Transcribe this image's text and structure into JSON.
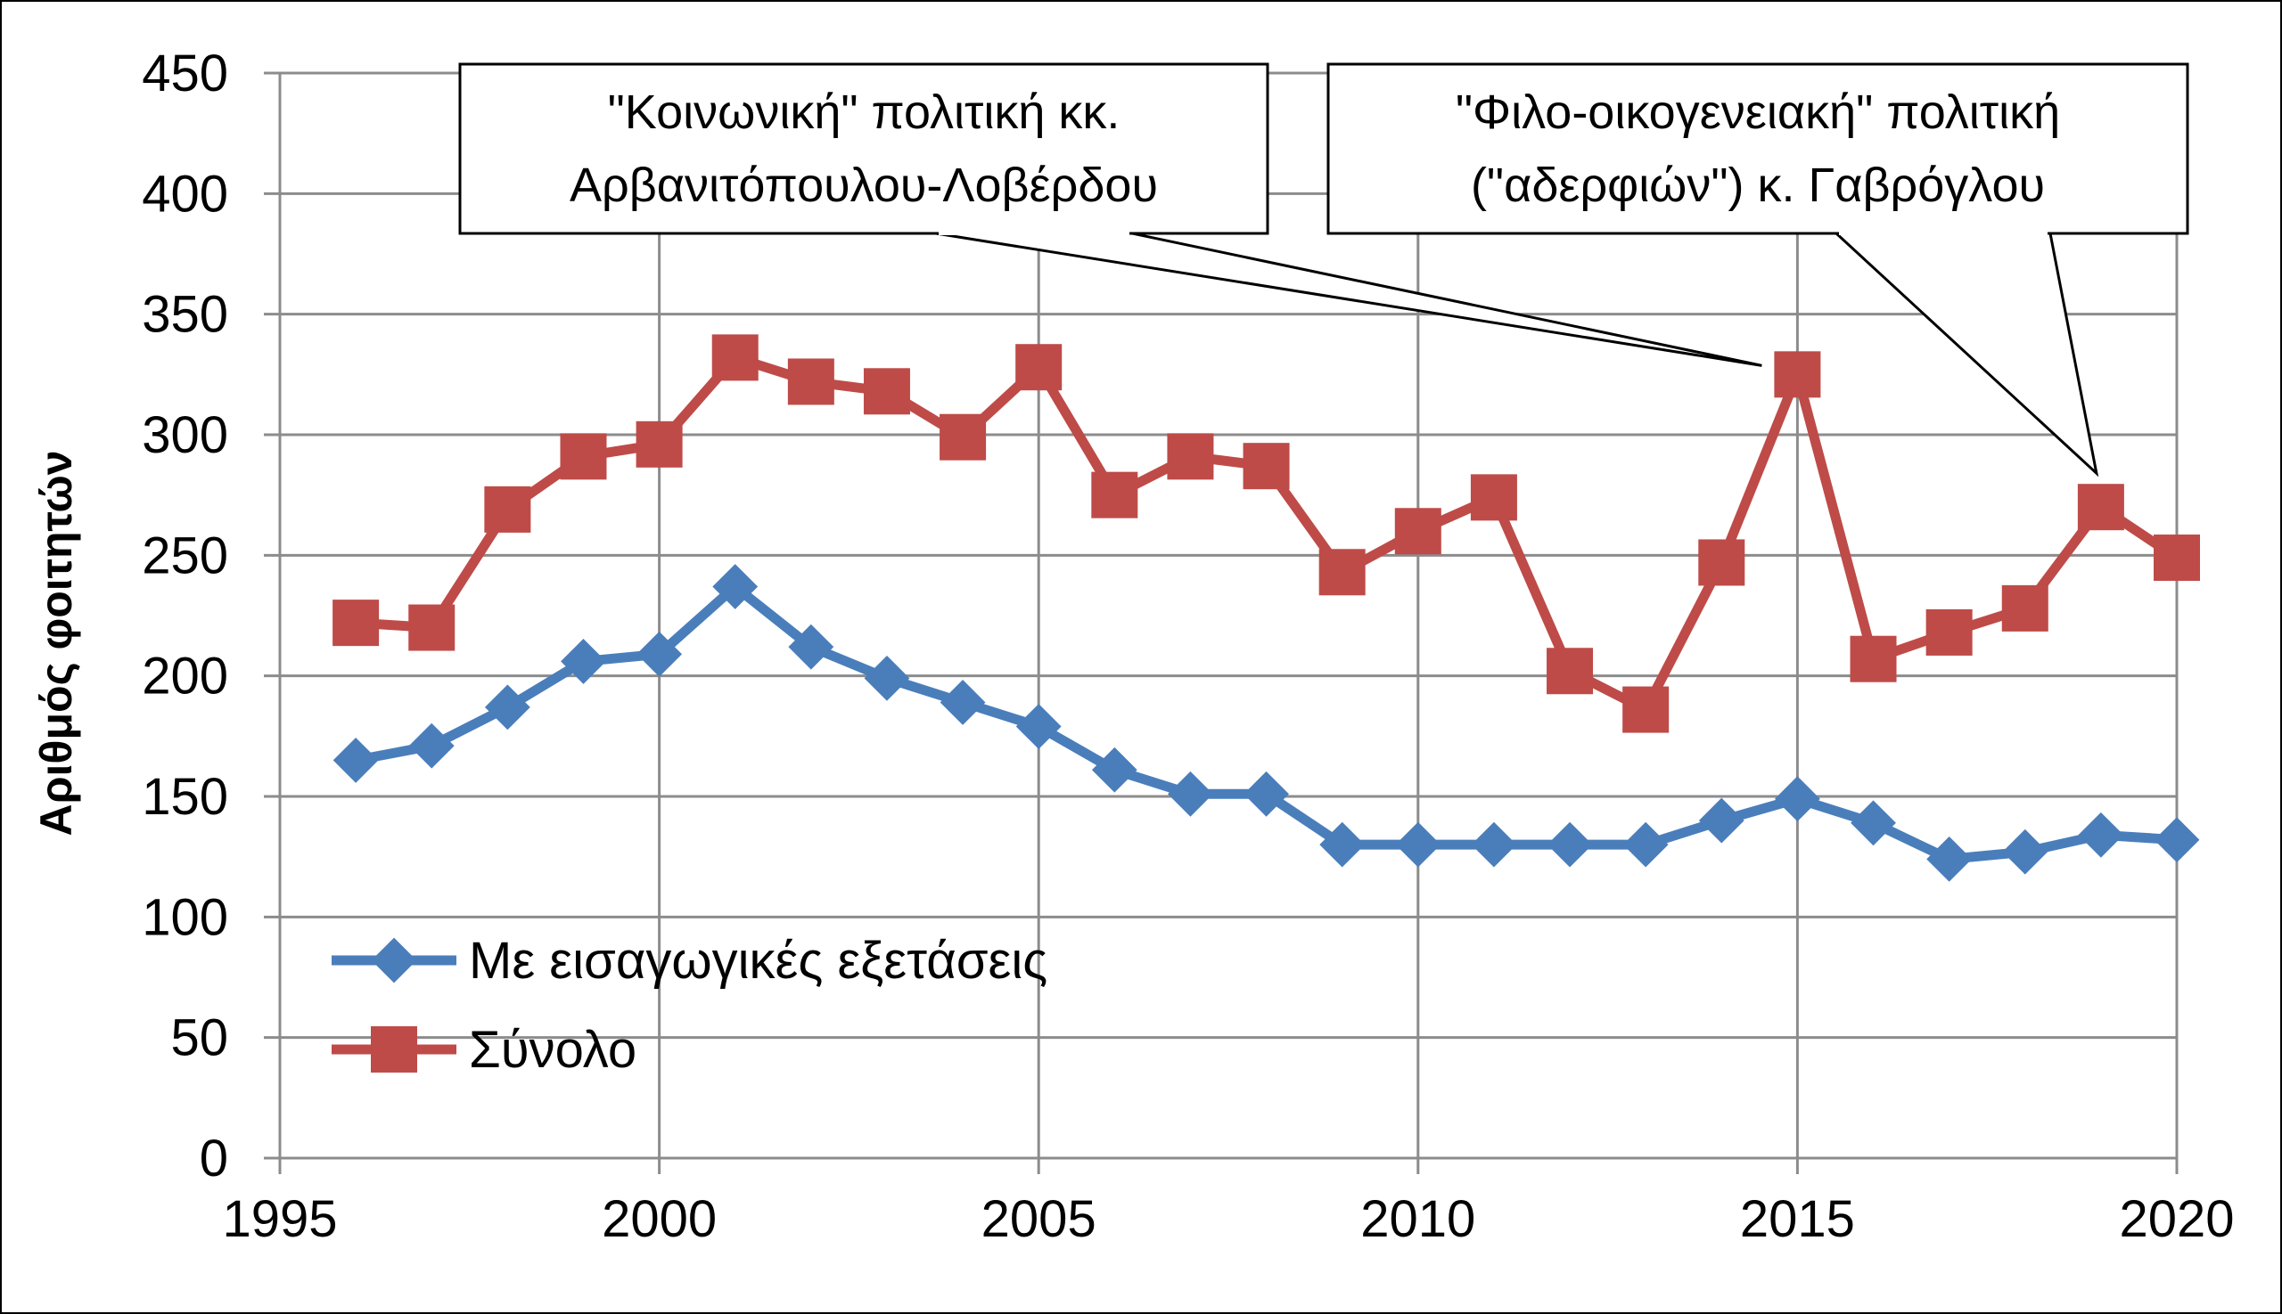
{
  "chart_data": {
    "type": "line",
    "title": "",
    "xlabel": "",
    "ylabel": "Αριθμός φοιτητών",
    "xlim": [
      1995,
      2020
    ],
    "ylim": [
      0,
      450
    ],
    "x_ticks": [
      "1995",
      "2000",
      "2005",
      "2010",
      "2015",
      "2020"
    ],
    "y_ticks": [
      "0",
      "50",
      "100",
      "150",
      "200",
      "250",
      "300",
      "350",
      "400",
      "450"
    ],
    "grid": true,
    "legend_position": "bottom-left",
    "x": [
      1996,
      1997,
      1998,
      1999,
      2000,
      2001,
      2002,
      2003,
      2004,
      2005,
      2006,
      2007,
      2008,
      2009,
      2010,
      2011,
      2012,
      2013,
      2014,
      2015,
      2016,
      2017,
      2018,
      2019,
      2020
    ],
    "series": [
      {
        "name": "Με εισαγωγικές εξετάσεις",
        "color": "#4a7ebb",
        "marker": "diamond",
        "values": [
          165,
          171,
          187,
          206,
          209,
          237,
          212,
          199,
          189,
          179,
          161,
          151,
          151,
          130,
          130,
          130,
          130,
          130,
          140,
          149,
          139,
          124,
          127,
          134,
          132
        ]
      },
      {
        "name": "Σύνολο",
        "color": "#be4b48",
        "marker": "square",
        "values": [
          222,
          220,
          269,
          291,
          296,
          332,
          322,
          318,
          299,
          328,
          275,
          291,
          287,
          243,
          260,
          274,
          202,
          186,
          247,
          325,
          207,
          218,
          228,
          270,
          249
        ]
      }
    ],
    "annotations": [
      {
        "lines": [
          "\"Κοινωνική\" πολιτική κκ.",
          "Αρβανιτόπουλου-Λοβέρδου"
        ],
        "target_x": 2015,
        "target_y": 325
      },
      {
        "lines": [
          "\"Φιλο-οικογενειακή\" πολιτική",
          "(\"αδερφιών\") κ. Γαβρόγλου"
        ],
        "target_x": 2019,
        "target_y": 270
      }
    ]
  }
}
